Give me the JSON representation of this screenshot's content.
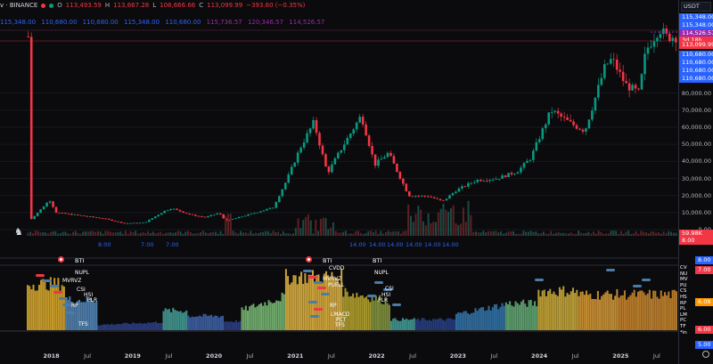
{
  "header": {
    "title": "v · BINANCE",
    "open_label": "O",
    "open": "113,493.59",
    "high_label": "H",
    "high": "113,667.28",
    "low_label": "L",
    "low": "108,666.66",
    "close_label": "C",
    "close": "113,099.99",
    "change": "−393.60 (−0.35%)"
  },
  "indicator_values": [
    "115,348.00",
    "110,680.00",
    "110,680.00",
    "115,348.00",
    "110,680.00",
    "115,736.57",
    "120,346.57",
    "114,526.57"
  ],
  "price_axis": {
    "currency": "USDT",
    "ticks": [
      "80,000.00",
      "70,000.00",
      "60,000.00",
      "50,000.00",
      "40,000.00",
      "30,000.00",
      "20,000.00",
      "10,000.00",
      "0.00"
    ],
    "tags": [
      {
        "text": "115,348.00",
        "color": "#2962ff"
      },
      {
        "text": "115,348.00",
        "color": "#2962ff"
      },
      {
        "text": "114,526.57",
        "color": "#9c27b0"
      },
      {
        "text": "3d 18h",
        "color": "#f23645"
      },
      {
        "text": "113,099.99",
        "color": "#f23645"
      },
      {
        "text": "110,680.00",
        "color": "#2962ff"
      },
      {
        "text": "110,680.00",
        "color": "#2962ff"
      },
      {
        "text": "110,680.00",
        "color": "#2962ff"
      },
      {
        "text": "110,680.00",
        "color": "#2962ff"
      }
    ],
    "vol_tags": [
      {
        "text": "59.98K",
        "color": "#f23645"
      },
      {
        "text": "8.00",
        "color": "#f23645"
      }
    ],
    "lower_tags": [
      {
        "text": "8.00",
        "color": "#2962ff"
      },
      {
        "text": "7.00",
        "color": "#f23645"
      },
      {
        "text": "6.08",
        "color": "#ff9800"
      },
      {
        "text": "6.00",
        "color": "#f23645"
      },
      {
        "text": "5.00",
        "color": "#2962ff"
      }
    ],
    "lower_right_labels": [
      "CV",
      "NU",
      "MV",
      "PU",
      "CS",
      "HS",
      "RP",
      "PL",
      "LM",
      "PC",
      "TF",
      "*in"
    ]
  },
  "bti_row": {
    "label1": "BTI",
    "label2": "BTI",
    "label3": "BTI",
    "numbers": [
      "8.00",
      "7.00",
      "7.00",
      "14.00",
      "14.00",
      "14.00",
      "14.00",
      "14.00",
      "14.00"
    ]
  },
  "lower_labels": {
    "left": [
      "NUPL",
      "MVRVZ",
      "CSI",
      "HSI",
      "PLR",
      "RP",
      "TFS"
    ],
    "mid": [
      "CVDD",
      "NUPL",
      "MVRVZ",
      "PUELL",
      "CSI",
      "HSI",
      "PLR",
      "RP",
      "LMACD",
      "PCT",
      "TFS"
    ]
  },
  "x_axis": {
    "labels": [
      {
        "text": "2018",
        "bold": true
      },
      {
        "text": "Jul",
        "bold": false
      },
      {
        "text": "2019",
        "bold": true
      },
      {
        "text": "Jul",
        "bold": false
      },
      {
        "text": "2020",
        "bold": true
      },
      {
        "text": "Jul",
        "bold": false
      },
      {
        "text": "2021",
        "bold": true
      },
      {
        "text": "Jul",
        "bold": false
      },
      {
        "text": "2022",
        "bold": true
      },
      {
        "text": "Jul",
        "bold": false
      },
      {
        "text": "2023",
        "bold": true
      },
      {
        "text": "Jul",
        "bold": false
      },
      {
        "text": "2024",
        "bold": true
      },
      {
        "text": "Jul",
        "bold": false
      },
      {
        "text": "2025",
        "bold": true
      },
      {
        "text": "Jul",
        "bold": false
      }
    ]
  },
  "chart_data": {
    "type": "line",
    "title": "",
    "price_series": [
      {
        "t": "2017-10",
        "v": 5000
      },
      {
        "t": "2017-12",
        "v": 13000
      },
      {
        "t": "2018-01",
        "v": 17500
      },
      {
        "t": "2018-02",
        "v": 10000
      },
      {
        "t": "2018-05",
        "v": 8500
      },
      {
        "t": "2018-09",
        "v": 6500
      },
      {
        "t": "2018-12",
        "v": 3700
      },
      {
        "t": "2019-03",
        "v": 4000
      },
      {
        "t": "2019-06",
        "v": 11000
      },
      {
        "t": "2019-07",
        "v": 12500
      },
      {
        "t": "2019-10",
        "v": 8500
      },
      {
        "t": "2019-12",
        "v": 7200
      },
      {
        "t": "2020-02",
        "v": 9800
      },
      {
        "t": "2020-03",
        "v": 5000
      },
      {
        "t": "2020-07",
        "v": 9500
      },
      {
        "t": "2020-10",
        "v": 13000
      },
      {
        "t": "2020-12",
        "v": 29000
      },
      {
        "t": "2021-02",
        "v": 48000
      },
      {
        "t": "2021-04",
        "v": 63000
      },
      {
        "t": "2021-06",
        "v": 33000
      },
      {
        "t": "2021-08",
        "v": 47000
      },
      {
        "t": "2021-11",
        "v": 67000
      },
      {
        "t": "2022-01",
        "v": 38000
      },
      {
        "t": "2022-03",
        "v": 45000
      },
      {
        "t": "2022-06",
        "v": 20000
      },
      {
        "t": "2022-09",
        "v": 19500
      },
      {
        "t": "2022-11",
        "v": 16500
      },
      {
        "t": "2023-01",
        "v": 23000
      },
      {
        "t": "2023-04",
        "v": 29000
      },
      {
        "t": "2023-07",
        "v": 30000
      },
      {
        "t": "2023-10",
        "v": 34000
      },
      {
        "t": "2023-12",
        "v": 42000
      },
      {
        "t": "2024-03",
        "v": 70000
      },
      {
        "t": "2024-06",
        "v": 62000
      },
      {
        "t": "2024-08",
        "v": 58000
      },
      {
        "t": "2024-11",
        "v": 96000
      },
      {
        "t": "2024-12",
        "v": 100000
      },
      {
        "t": "2025-02",
        "v": 85000
      },
      {
        "t": "2025-04",
        "v": 80000
      },
      {
        "t": "2025-05",
        "v": 105000
      },
      {
        "t": "2025-07",
        "v": 118000
      },
      {
        "t": "2025-08",
        "v": 113100
      }
    ],
    "ylim": [
      0,
      120000
    ]
  },
  "colors": {
    "up": "#089981",
    "down": "#f23645",
    "bg": "#0b0b0d"
  }
}
